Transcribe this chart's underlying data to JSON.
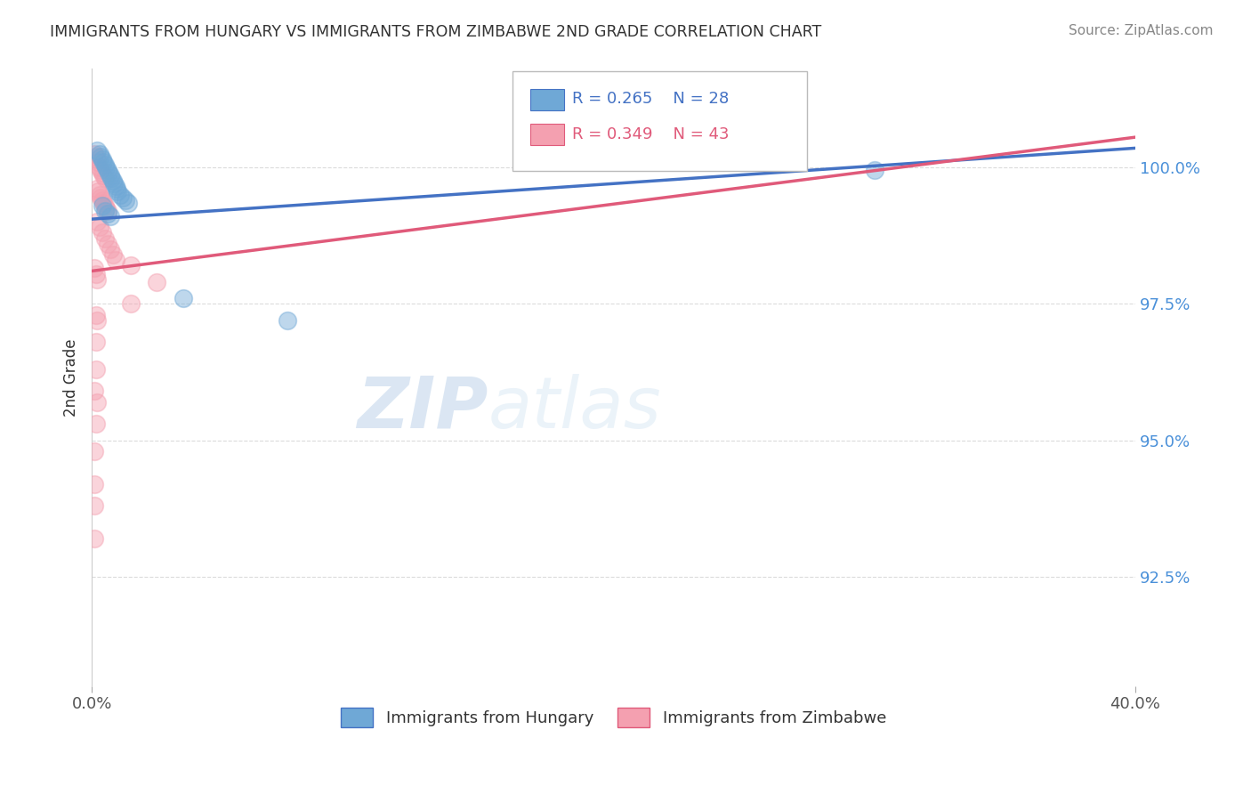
{
  "title": "IMMIGRANTS FROM HUNGARY VS IMMIGRANTS FROM ZIMBABWE 2ND GRADE CORRELATION CHART",
  "source": "Source: ZipAtlas.com",
  "ylabel": "2nd Grade",
  "yticks": [
    92.5,
    95.0,
    97.5,
    100.0
  ],
  "ytick_labels": [
    "92.5%",
    "95.0%",
    "97.5%",
    "100.0%"
  ],
  "xmin": 0.0,
  "xmax": 40.0,
  "ymin": 90.5,
  "ymax": 101.8,
  "legend_blue_r": "R = 0.265",
  "legend_blue_n": "N = 28",
  "legend_pink_r": "R = 0.349",
  "legend_pink_n": "N = 43",
  "blue_color": "#6fa8d6",
  "pink_color": "#f4a0b0",
  "blue_line_x": [
    0.0,
    40.0
  ],
  "blue_line_y": [
    99.05,
    100.35
  ],
  "pink_line_x": [
    0.0,
    40.0
  ],
  "pink_line_y": [
    98.1,
    100.55
  ],
  "blue_scatter": [
    [
      0.2,
      100.3
    ],
    [
      0.3,
      100.25
    ],
    [
      0.35,
      100.2
    ],
    [
      0.4,
      100.15
    ],
    [
      0.45,
      100.1
    ],
    [
      0.5,
      100.05
    ],
    [
      0.55,
      100.0
    ],
    [
      0.6,
      99.95
    ],
    [
      0.65,
      99.9
    ],
    [
      0.7,
      99.85
    ],
    [
      0.75,
      99.8
    ],
    [
      0.8,
      99.75
    ],
    [
      0.85,
      99.7
    ],
    [
      0.9,
      99.65
    ],
    [
      0.95,
      99.6
    ],
    [
      1.0,
      99.55
    ],
    [
      1.1,
      99.5
    ],
    [
      1.2,
      99.45
    ],
    [
      1.3,
      99.4
    ],
    [
      1.4,
      99.35
    ],
    [
      0.5,
      99.2
    ],
    [
      0.6,
      99.15
    ],
    [
      0.7,
      99.1
    ],
    [
      3.5,
      97.6
    ],
    [
      7.5,
      97.2
    ],
    [
      18.5,
      100.2
    ],
    [
      30.0,
      99.95
    ],
    [
      0.4,
      99.3
    ]
  ],
  "pink_scatter": [
    [
      0.1,
      100.25
    ],
    [
      0.15,
      100.2
    ],
    [
      0.2,
      100.15
    ],
    [
      0.25,
      100.1
    ],
    [
      0.3,
      100.0
    ],
    [
      0.35,
      99.95
    ],
    [
      0.4,
      99.9
    ],
    [
      0.45,
      99.85
    ],
    [
      0.5,
      99.8
    ],
    [
      0.2,
      99.6
    ],
    [
      0.25,
      99.55
    ],
    [
      0.3,
      99.5
    ],
    [
      0.35,
      99.45
    ],
    [
      0.4,
      99.4
    ],
    [
      0.45,
      99.35
    ],
    [
      0.5,
      99.3
    ],
    [
      0.55,
      99.25
    ],
    [
      0.6,
      99.2
    ],
    [
      0.2,
      99.0
    ],
    [
      0.3,
      98.9
    ],
    [
      0.4,
      98.8
    ],
    [
      0.5,
      98.7
    ],
    [
      0.6,
      98.6
    ],
    [
      0.7,
      98.5
    ],
    [
      0.8,
      98.4
    ],
    [
      0.9,
      98.3
    ],
    [
      0.1,
      98.15
    ],
    [
      0.15,
      98.05
    ],
    [
      0.2,
      97.95
    ],
    [
      1.5,
      98.2
    ],
    [
      2.5,
      97.9
    ],
    [
      1.5,
      97.5
    ],
    [
      0.15,
      97.3
    ],
    [
      0.2,
      97.2
    ],
    [
      0.15,
      96.8
    ],
    [
      0.15,
      96.3
    ],
    [
      0.1,
      95.9
    ],
    [
      0.2,
      95.7
    ],
    [
      0.15,
      95.3
    ],
    [
      0.1,
      94.8
    ],
    [
      0.1,
      94.2
    ],
    [
      0.1,
      93.8
    ],
    [
      0.1,
      93.2
    ]
  ],
  "axis_color": "#4a90d9",
  "grid_color": "#cccccc",
  "title_color": "#333333",
  "source_color": "#888888"
}
